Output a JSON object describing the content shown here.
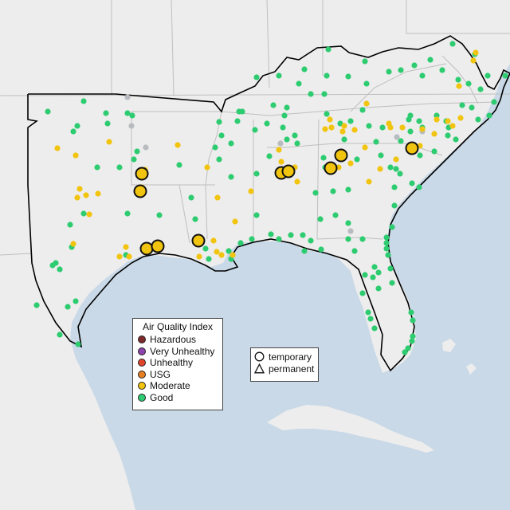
{
  "legend": {
    "title": "Air Quality Index",
    "categories": [
      {
        "label": "Hazardous",
        "color": "#7e2a2a"
      },
      {
        "label": "Very Unhealthy",
        "color": "#8e44ad"
      },
      {
        "label": "Unhealthy",
        "color": "#e0452a"
      },
      {
        "label": "USG",
        "color": "#e67e22"
      },
      {
        "label": "Moderate",
        "color": "#f1c40f"
      },
      {
        "label": "Good",
        "color": "#2ecc71"
      }
    ],
    "no_data_color": "#b8bcc0"
  },
  "monitor_types": [
    {
      "label": "temporary",
      "icon": "circle-icon"
    },
    {
      "label": "permanent",
      "icon": "triangle-icon"
    }
  ],
  "map": {
    "basemap": "southeastern-united-states",
    "monitor_counts_by_aqi": {
      "Moderate": 54,
      "Good": 162,
      "no data": 7
    },
    "temporary_monitor_aqi": "Moderate"
  }
}
